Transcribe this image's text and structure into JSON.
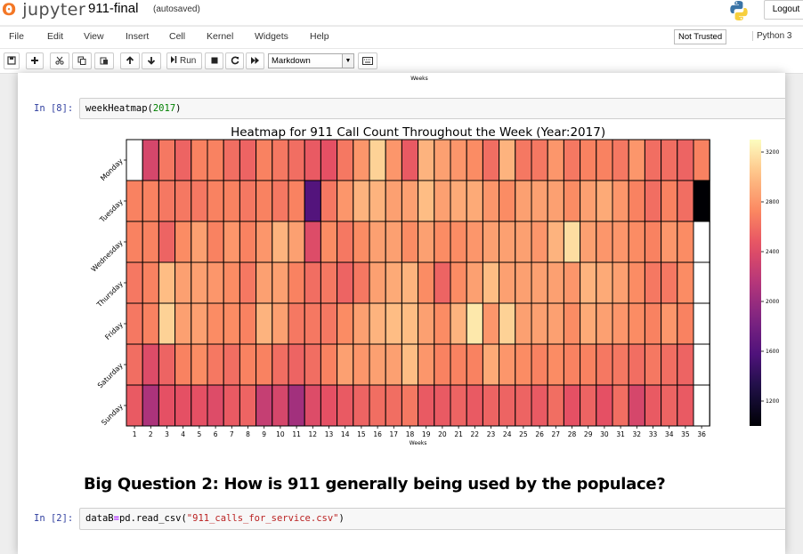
{
  "header": {
    "logo_text": "jupyter",
    "notebook_name": "911-final",
    "autosave_status": "(autosaved)",
    "logout_label": "Logout"
  },
  "menubar": {
    "items": [
      "File",
      "Edit",
      "View",
      "Insert",
      "Cell",
      "Kernel",
      "Widgets",
      "Help"
    ],
    "trust_status": "Not Trusted",
    "kernel_name": "Python 3"
  },
  "toolbar": {
    "run_label": "Run",
    "cell_type": "Markdown",
    "icons": [
      "save-icon",
      "plus-icon",
      "cut-icon",
      "copy-icon",
      "paste-icon",
      "arrow-up-icon",
      "arrow-down-icon",
      "run-icon",
      "stop-icon",
      "restart-icon",
      "fast-forward-icon",
      "keyboard-icon"
    ]
  },
  "cells": [
    {
      "prompt": "In [8]:",
      "code": [
        {
          "t": "weekHeatmap(",
          "c": ""
        },
        {
          "t": "2017",
          "c": "num"
        },
        {
          "t": ")",
          "c": ""
        }
      ]
    },
    {
      "heading": "Big Question 2: How is 911 generally being used by the populace?"
    },
    {
      "prompt": "In [2]:",
      "code": [
        {
          "t": "dataB",
          "c": ""
        },
        {
          "t": "=",
          "c": "op"
        },
        {
          "t": "pd.read_csv(",
          "c": ""
        },
        {
          "t": "\"911_calls_for_service.csv\"",
          "c": "str"
        },
        {
          "t": ")",
          "c": ""
        }
      ]
    }
  ],
  "previous_output_label": "Weeks",
  "chart_data": {
    "type": "heatmap",
    "title": "Heatmap for 911 Call Count Throughout the Week (Year:2017)",
    "xlabel": "Weeks",
    "ylabel": "",
    "x": [
      1,
      2,
      3,
      4,
      5,
      6,
      7,
      8,
      9,
      10,
      11,
      12,
      13,
      14,
      15,
      16,
      17,
      18,
      19,
      20,
      21,
      22,
      23,
      24,
      25,
      26,
      27,
      28,
      29,
      30,
      31,
      32,
      33,
      34,
      35,
      36
    ],
    "y": [
      "Monday",
      "Tuesday",
      "Wednesday",
      "Thursday",
      "Friday",
      "Saturday",
      "Sunday"
    ],
    "colormap": "magma",
    "colorbar": {
      "min": 1000,
      "max": 3300,
      "ticks": [
        1200,
        1600,
        2000,
        2400,
        2800,
        3200
      ]
    },
    "values": [
      [
        null,
        2350,
        2650,
        2550,
        2700,
        2700,
        2600,
        2550,
        2700,
        2650,
        2600,
        2500,
        2450,
        2650,
        2800,
        3100,
        2800,
        2500,
        2950,
        2850,
        2800,
        2750,
        2600,
        2950,
        2650,
        2650,
        2800,
        2650,
        2700,
        2700,
        2650,
        2800,
        2600,
        2600,
        2550,
        2700
      ],
      [
        2700,
        2700,
        2650,
        2650,
        2650,
        2700,
        2700,
        2650,
        2700,
        2650,
        2700,
        1600,
        2650,
        2800,
        2950,
        2950,
        2850,
        2850,
        3000,
        2850,
        2900,
        2900,
        2800,
        2750,
        2850,
        2850,
        2850,
        2750,
        2850,
        2900,
        2800,
        2700,
        2600,
        2700,
        2600,
        1000
      ],
      [
        2700,
        2700,
        2550,
        2750,
        2850,
        2700,
        2800,
        2700,
        2800,
        2950,
        2850,
        2400,
        2750,
        2650,
        2750,
        2850,
        2850,
        2750,
        2850,
        2750,
        2750,
        2800,
        2850,
        2850,
        2850,
        2800,
        2950,
        3150,
        2850,
        2800,
        2800,
        2750,
        2700,
        2800,
        2750,
        null
      ],
      [
        2650,
        2700,
        3000,
        2850,
        2850,
        2800,
        2750,
        2650,
        2850,
        2850,
        2700,
        2600,
        2650,
        2550,
        2650,
        2850,
        2900,
        2950,
        2750,
        2550,
        2750,
        2850,
        3000,
        2850,
        2850,
        2850,
        2850,
        2800,
        2950,
        2900,
        2850,
        2750,
        2650,
        2650,
        2750,
        null
      ],
      [
        2650,
        2700,
        3100,
        2850,
        2850,
        2750,
        2750,
        2700,
        2950,
        2850,
        2650,
        2650,
        2650,
        2750,
        2850,
        2950,
        3000,
        3000,
        2850,
        2750,
        2950,
        3200,
        2800,
        3100,
        2850,
        2850,
        2850,
        2750,
        2900,
        2850,
        2800,
        2750,
        2700,
        2800,
        2700,
        null
      ],
      [
        2600,
        2400,
        2550,
        2700,
        2750,
        2650,
        2600,
        2700,
        2700,
        2600,
        2550,
        2600,
        2700,
        2850,
        2800,
        2850,
        2850,
        3000,
        2800,
        2700,
        2700,
        2700,
        2900,
        2800,
        2750,
        2700,
        2750,
        2700,
        2700,
        2650,
        2650,
        2600,
        2650,
        2600,
        2550,
        null
      ],
      [
        2500,
        2100,
        2450,
        2450,
        2450,
        2400,
        2500,
        2550,
        2250,
        2350,
        2050,
        2400,
        2450,
        2500,
        2550,
        2600,
        2600,
        2650,
        2500,
        2500,
        2550,
        2500,
        2550,
        2550,
        2550,
        2500,
        2600,
        2450,
        2550,
        2450,
        2600,
        2350,
        2500,
        2550,
        2500,
        null
      ]
    ]
  }
}
